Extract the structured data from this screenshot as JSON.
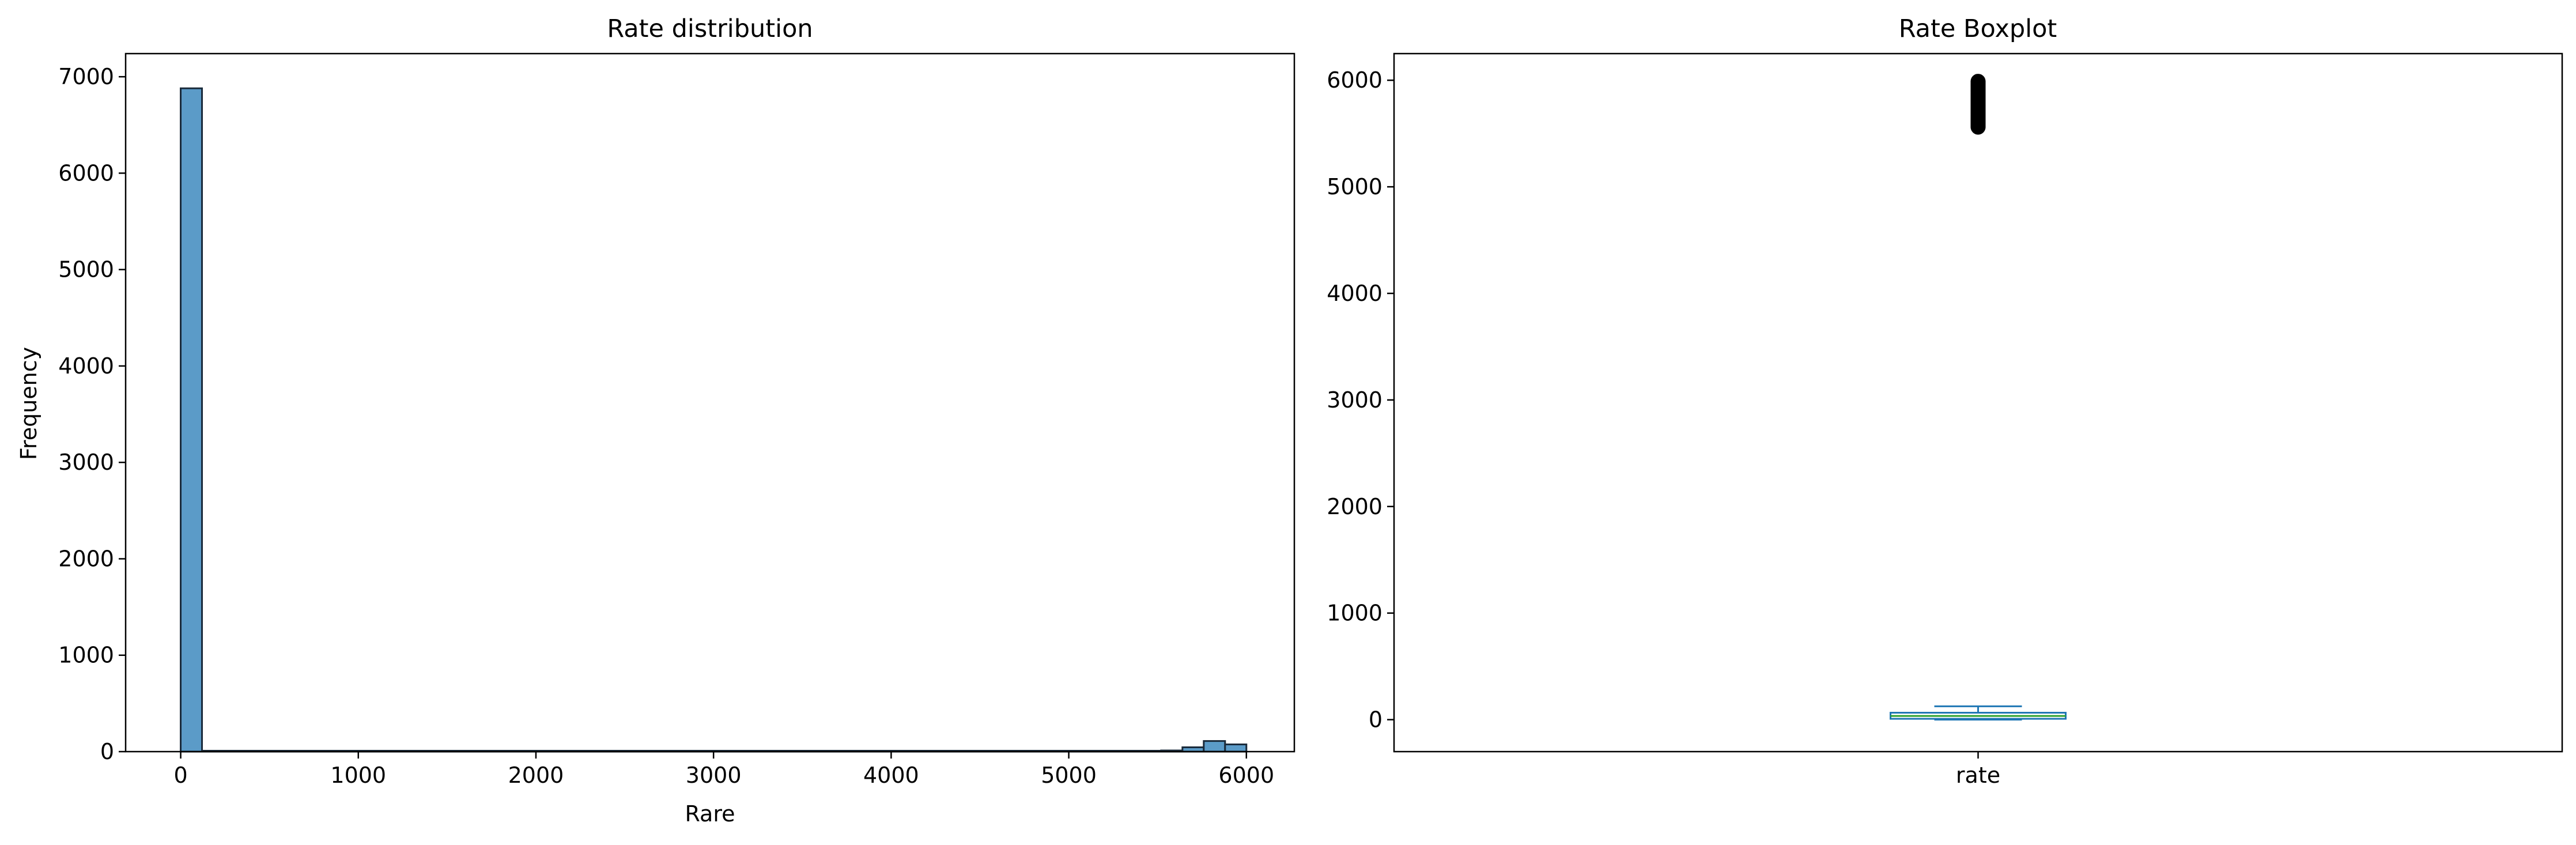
{
  "chart_data": [
    {
      "type": "bar",
      "title": "Rate distribution",
      "xlabel": "Rare",
      "ylabel": "Frequency",
      "xlim": [
        -310,
        6270
      ],
      "ylim": [
        0,
        7240
      ],
      "xticks": [
        0,
        1000,
        2000,
        3000,
        4000,
        5000,
        6000
      ],
      "yticks": [
        0,
        1000,
        2000,
        3000,
        4000,
        5000,
        6000,
        7000
      ],
      "bin_width": 120,
      "bins": [
        {
          "x0": 0,
          "x1": 120,
          "count": 6880
        },
        {
          "x0": 120,
          "x1": 5520,
          "count": 0
        },
        {
          "x0": 5520,
          "x1": 5640,
          "count": 12
        },
        {
          "x0": 5640,
          "x1": 5760,
          "count": 45
        },
        {
          "x0": 5760,
          "x1": 5880,
          "count": 110
        },
        {
          "x0": 5880,
          "x1": 6000,
          "count": 75
        }
      ],
      "bar_color": "#5b9bc8",
      "edge_color": "#1a2a3a"
    },
    {
      "type": "box",
      "title": "Rate Boxplot",
      "categories": [
        "rate"
      ],
      "ylim": [
        -300,
        6250
      ],
      "yticks": [
        0,
        1000,
        2000,
        3000,
        4000,
        5000,
        6000
      ],
      "box": {
        "min": 0,
        "q1": 8,
        "median": 35,
        "q3": 65,
        "max": 125
      },
      "outliers_range": [
        5560,
        5990
      ],
      "box_color": "#1f77b4",
      "median_color": "#2ca02c",
      "outlier_color": "#000000"
    }
  ]
}
